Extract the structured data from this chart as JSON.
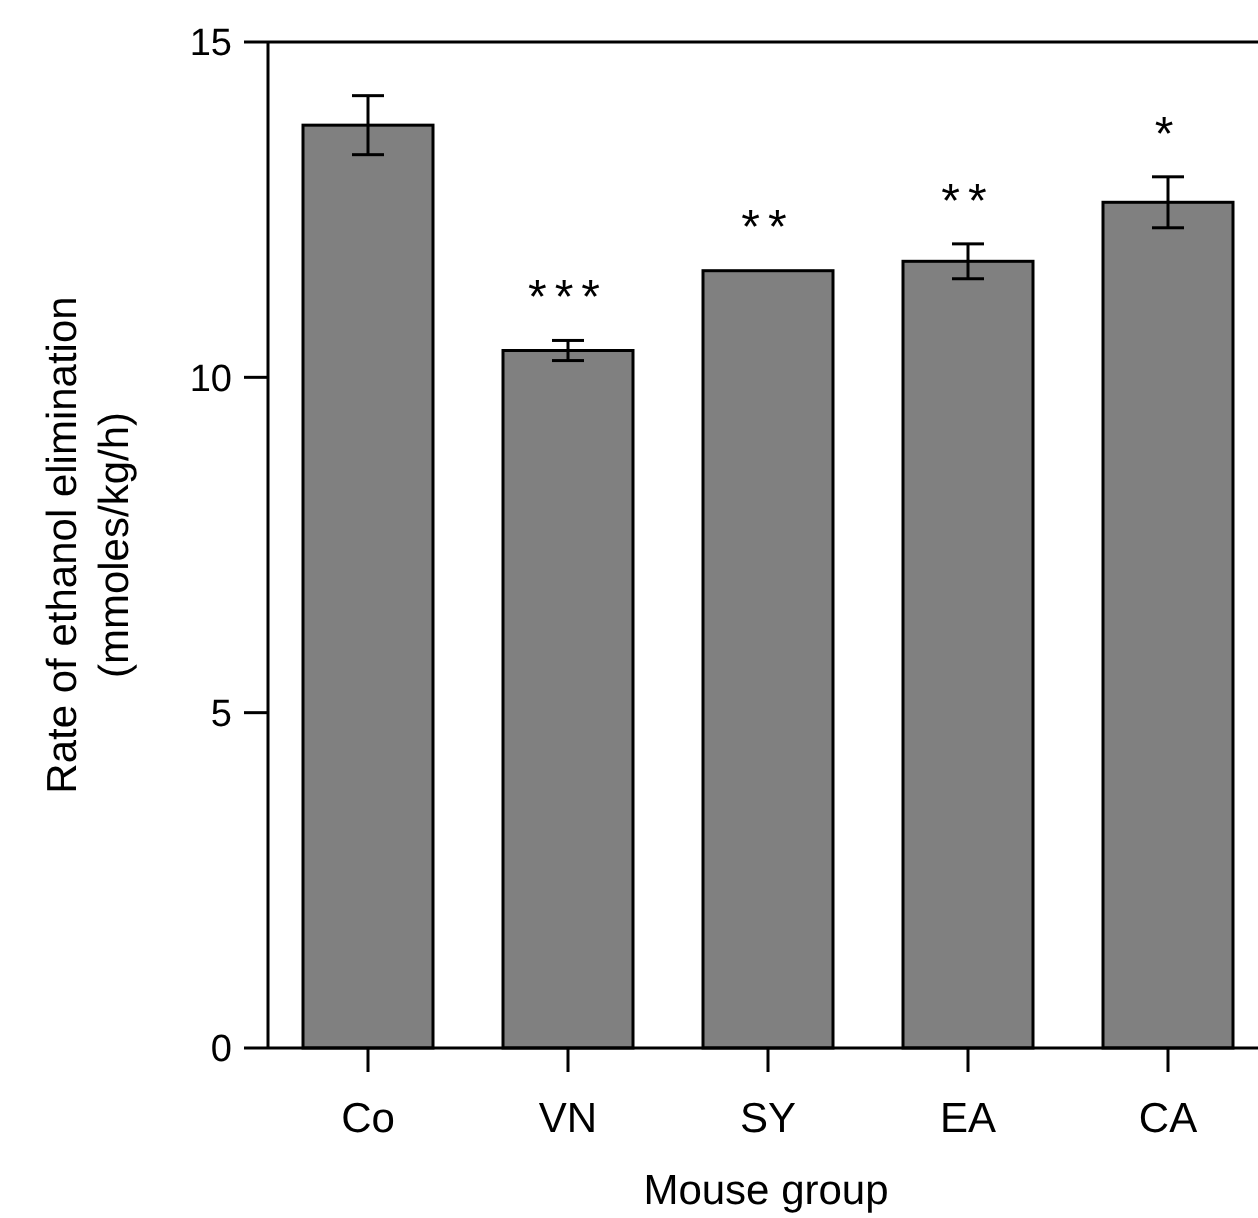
{
  "chart_data": {
    "type": "bar",
    "xlabel": "Mouse group",
    "ylabel": "Rate of ethanol elimination\n(mmoles/kg/h)",
    "categories": [
      "Co",
      "VN",
      "SY",
      "EA",
      "CA"
    ],
    "values": [
      13.76,
      10.4,
      11.59,
      11.73,
      12.61
    ],
    "errors": [
      0.44,
      0.15,
      null,
      0.26,
      0.38
    ],
    "color": "#808080",
    "ylim": [
      0,
      15
    ],
    "yticks": [
      0,
      5,
      10,
      15
    ],
    "grid": false,
    "annotations": [
      {
        "text": "***",
        "x": "VN",
        "y": 10.4
      },
      {
        "text": "**",
        "x": "SY",
        "y": 11.59
      },
      {
        "text": "**",
        "x": "EA",
        "y": 11.73
      },
      {
        "text": "*",
        "x": "CA",
        "y": 12.61
      }
    ]
  }
}
